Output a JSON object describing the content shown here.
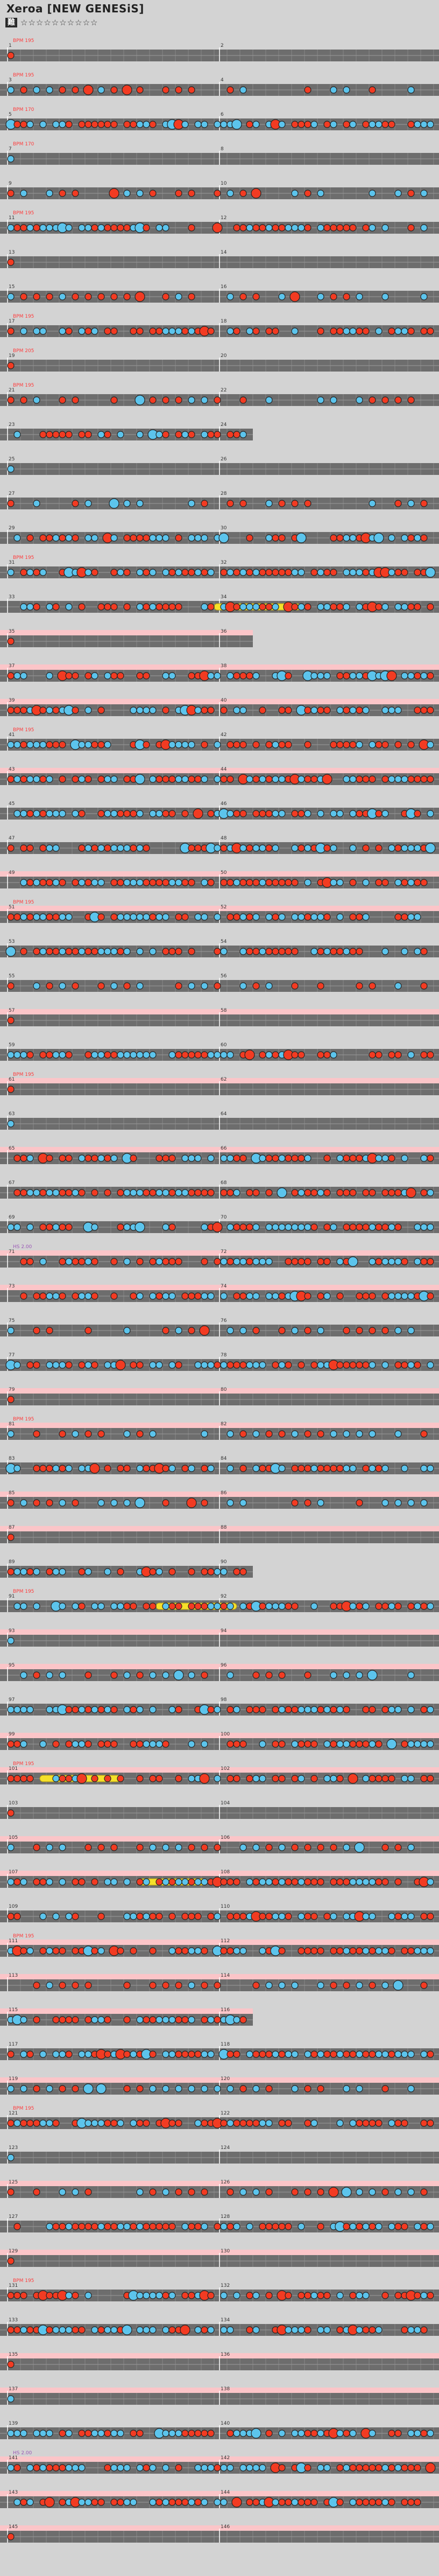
{
  "title": "Xeroa [NEW GENESiS]",
  "difficulty_label": "難",
  "difficulty_stars": "☆☆☆☆☆☆☆☆☆☆",
  "colors": {
    "don": "#f23b22",
    "ka": "#5cc4ec",
    "roll": "#f5e02a",
    "gogo_band": "#fbc5c8",
    "track": "#6d6d6d",
    "line": "#9a9a9a",
    "bar_line": "#ffffff",
    "bpm_text": "#ff3c3c",
    "hs_text": "#9b59b6"
  },
  "chart_data": {
    "type": "table",
    "rows": [
      {
        "tempo": "BPM 195",
        "sections": [
          {
            "m": 1,
            "n": [
              "D"
            ]
          }
        ]
      },
      {
        "hs": "HS 1.75",
        "sections": [
          {
            "m": 2,
            "n": [
              "D"
            ]
          },
          {
            "m": 3,
            "n": [
              "---ddddddddddddd"
            ]
          }
        ]
      },
      {
        "bpm": "BPM 170",
        "sections": [
          {
            "m": 4,
            "n": [
              "D"
            ]
          },
          {
            "m": 5,
            "bpm": "BPM 195",
            "n": [
              "dkddddddddddkdddd"
            ]
          }
        ]
      },
      {
        "bpm": "BPM 170",
        "sections": [
          {
            "m": 6,
            "n": [
              "D"
            ]
          },
          {
            "m": 7,
            "bpm": "BPM 195",
            "n": [
              "-dkdddkkkdkddk---"
            ]
          }
        ]
      },
      {
        "sections": [
          {
            "m": 8,
            "n": [
              "d"
            ]
          },
          {
            "m": 9,
            "n": [
              "ddddddddkdddddkkkk"
            ]
          }
        ]
      },
      {
        "sections": [
          {
            "m": 10,
            "n": [
              "d-----------d-----------d-----------"
            ]
          },
          {
            "m": 11,
            "n": [
              "k----------------------d---------"
            ]
          }
        ]
      },
      {
        "sections": [
          {
            "m": 12,
            "n": [
              "k-----------d"
            ]
          },
          {
            "m": 13,
            "n": [
              "k"
            ]
          }
        ]
      },
      {
        "sections": [
          {
            "m": 14,
            "n": [
              "k"
            ]
          },
          {
            "m": 15,
            "n": [
              "k"
            ]
          }
        ]
      },
      {
        "bpm": "BPM 195",
        "sections": [
          {
            "m": 16,
            "n": [
              "D"
            ]
          },
          {
            "m": 17,
            "bpm": "BPM 210",
            "n": [
              "dkdddddddkddddk"
            ]
          }
        ]
      },
      {
        "bpm": "BPM 205",
        "sections": [
          {
            "m": 18,
            "n": [
              "dddddddddkdddddd"
            ]
          },
          {
            "m": 19,
            "n": [
              "---"
            ]
          }
        ]
      },
      {
        "hs": "HS 2.00",
        "sections": [
          {
            "m": 20,
            "n": [
              "dddddddddddddddd"
            ]
          },
          {
            "m": 21,
            "n": [
              "dkkkdkkkdkkkkdddd"
            ]
          }
        ]
      },
      {
        "sections": [
          {
            "m": 22,
            "n": [
              "dddddddddddddddd"
            ]
          },
          {
            "m": 23,
            "n": [
              "dkkkdkkkdkdkdk"
            ]
          }
        ]
      }
    ]
  },
  "measure_labels": [
    "1",
    "2",
    "3",
    "4",
    "5",
    "6",
    "7",
    "8",
    "9",
    "10",
    "11",
    "12",
    "13",
    "14",
    "15",
    "16",
    "17",
    "18",
    "19",
    "20",
    "21",
    "22",
    "23",
    "24",
    "25",
    "26",
    "27",
    "28",
    "29",
    "30",
    "31",
    "32",
    "33",
    "34",
    "35",
    "36",
    "37",
    "38",
    "39",
    "40",
    "41",
    "42",
    "43",
    "44",
    "45",
    "46",
    "47",
    "48",
    "49",
    "50",
    "51",
    "52",
    "53",
    "54",
    "55",
    "56",
    "57",
    "58",
    "59",
    "60",
    "61",
    "62",
    "63",
    "64",
    "65",
    "66",
    "67",
    "68",
    "69",
    "70",
    "71",
    "72",
    "73",
    "74",
    "75",
    "76",
    "77",
    "78",
    "79",
    "80",
    "81",
    "82",
    "83",
    "84",
    "85",
    "86",
    "87",
    "88",
    "89",
    "90",
    "91",
    "92",
    "93",
    "94",
    "95",
    "96",
    "97",
    "98",
    "99",
    "100",
    "101",
    "102",
    "103",
    "104",
    "105",
    "106",
    "107",
    "108",
    "109",
    "110",
    "111",
    "112",
    "113",
    "114",
    "115",
    "116",
    "117",
    "118",
    "119",
    "120",
    "121",
    "122",
    "123",
    "124",
    "125",
    "126",
    "127",
    "128",
    "129",
    "130",
    "131",
    "132",
    "133",
    "134",
    "135",
    "136",
    "137",
    "138",
    "139",
    "140",
    "141",
    "142",
    "143",
    "144",
    "145",
    "146"
  ],
  "tempo_labels": [
    "BPM 195",
    "BPM 170",
    "BPM 195",
    "BPM 210",
    "BPM 205",
    "BPM 190",
    "BPM 185",
    "BPM 165",
    "HS 1.75",
    "HS 2.00",
    "HS 1.00"
  ]
}
